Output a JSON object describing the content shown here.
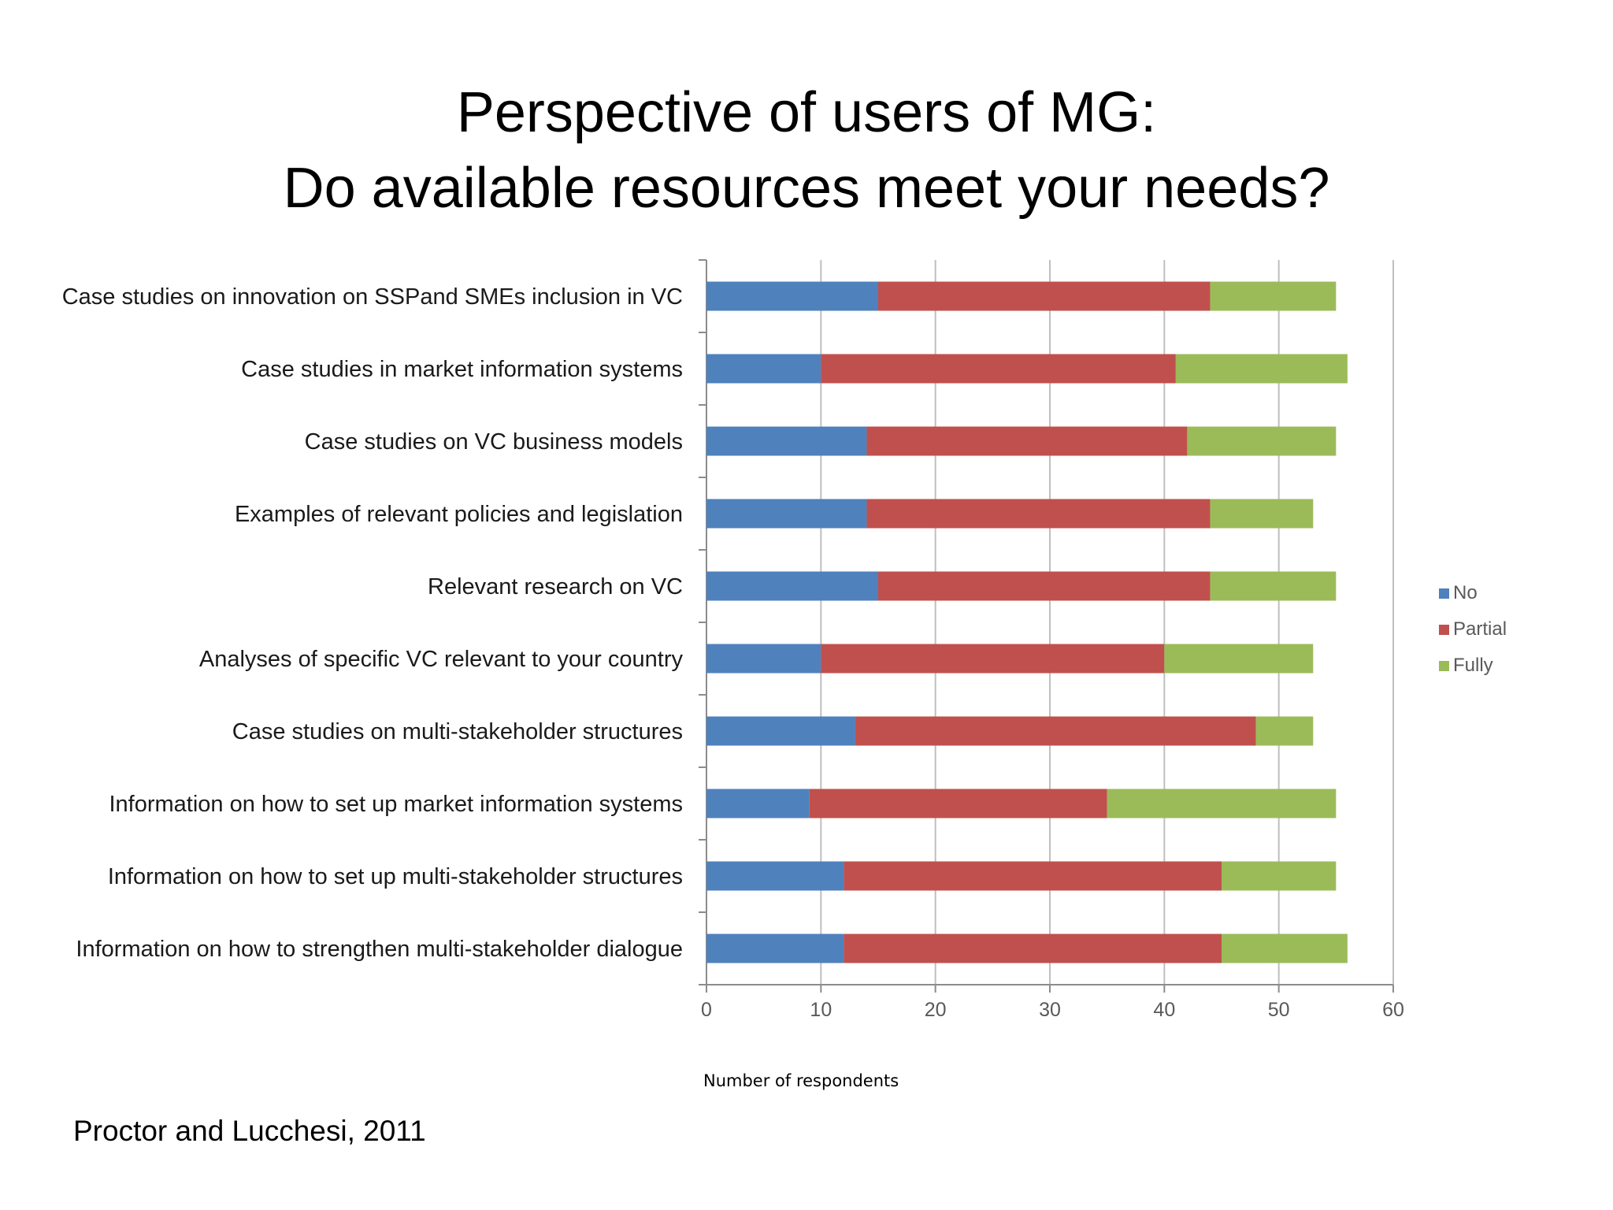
{
  "slide": {
    "title_line1": "Perspective of users of MG:",
    "title_line2": "Do available resources meet your needs?",
    "source": "Proctor and Lucchesi, 2011"
  },
  "chart_data": {
    "type": "bar",
    "orientation": "horizontal",
    "stacked": true,
    "categories": [
      "Case studies on innovation on SSPand SMEs inclusion in VC",
      "Case studies in market information systems",
      "Case studies on VC business models",
      "Examples of relevant policies and legislation",
      "Relevant research on VC",
      "Analyses of specific VC relevant to your country",
      "Case studies on multi-stakeholder structures",
      "Information on how to set up market information systems",
      "Information on how to set up multi-stakeholder structures",
      "Information on how to strengthen multi-stakeholder dialogue"
    ],
    "series": [
      {
        "name": "No",
        "color": "#4f81bd",
        "values": [
          15,
          10,
          14,
          14,
          15,
          10,
          13,
          9,
          12,
          12
        ]
      },
      {
        "name": "Partial",
        "color": "#c0504d",
        "values": [
          29,
          31,
          28,
          30,
          29,
          30,
          35,
          26,
          33,
          33
        ]
      },
      {
        "name": "Fully",
        "color": "#9bbb59",
        "values": [
          11,
          15,
          13,
          9,
          11,
          13,
          5,
          20,
          10,
          11
        ]
      }
    ],
    "xlim": [
      0,
      60
    ],
    "xticks": [
      "0",
      "10",
      "20",
      "30",
      "40",
      "50",
      "60"
    ],
    "xlabel": "Number of respondents",
    "grid": true,
    "legend_position": "right"
  }
}
